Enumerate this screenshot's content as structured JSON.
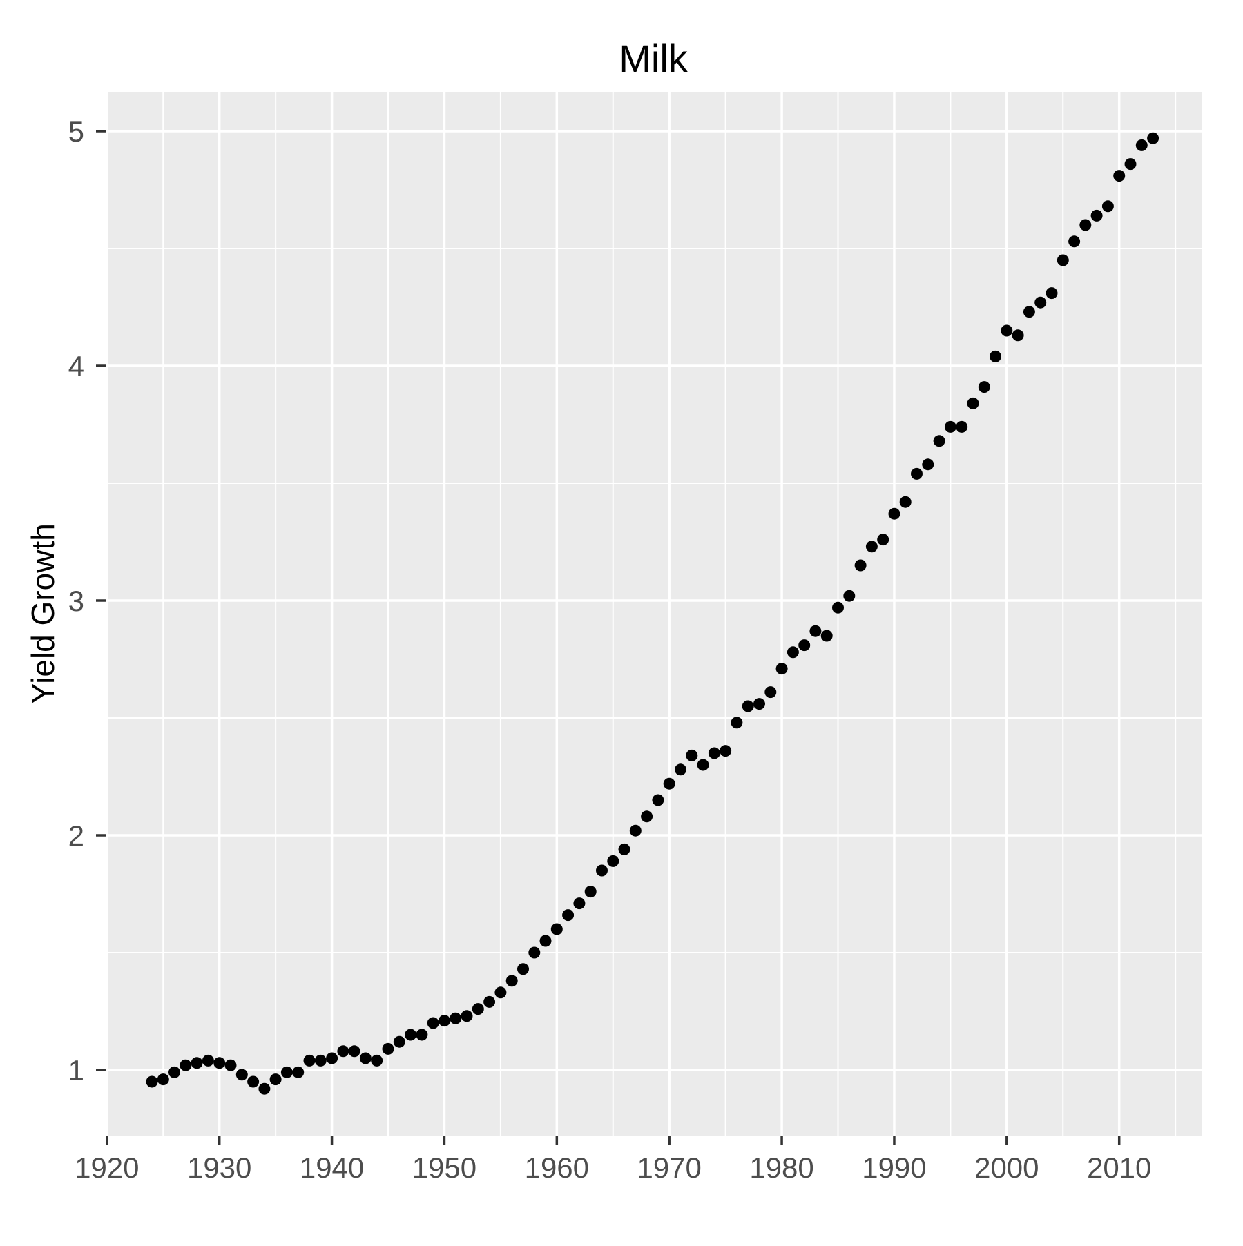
{
  "page": {
    "background_color": "#FFFFFF"
  },
  "chart_data": {
    "type": "scatter",
    "title": "Milk",
    "xlabel": "",
    "ylabel": "Yield Growth",
    "legend": "none",
    "grid": "major-and-minor",
    "panel_background": "#EBEBEB",
    "gridline_color": "#FFFFFF",
    "point_color": "#000000",
    "axis_text_color": "#4D4D4D",
    "tick_mark_color": "#333333",
    "x_ticks": [
      1920,
      1930,
      1940,
      1950,
      1960,
      1970,
      1980,
      1990,
      2000,
      2010
    ],
    "y_ticks": [
      1,
      2,
      3,
      4,
      5
    ],
    "xlim": [
      1919.9,
      2017.3
    ],
    "ylim": [
      0.72,
      5.17
    ],
    "x": [
      1924,
      1925,
      1926,
      1927,
      1928,
      1929,
      1930,
      1931,
      1932,
      1933,
      1934,
      1935,
      1936,
      1937,
      1938,
      1939,
      1940,
      1941,
      1942,
      1943,
      1944,
      1945,
      1946,
      1947,
      1948,
      1949,
      1950,
      1951,
      1952,
      1953,
      1954,
      1955,
      1956,
      1957,
      1958,
      1959,
      1960,
      1961,
      1962,
      1963,
      1964,
      1965,
      1966,
      1967,
      1968,
      1969,
      1970,
      1971,
      1972,
      1973,
      1974,
      1975,
      1976,
      1977,
      1978,
      1979,
      1980,
      1981,
      1982,
      1983,
      1984,
      1985,
      1986,
      1987,
      1988,
      1989,
      1990,
      1991,
      1992,
      1993,
      1994,
      1995,
      1996,
      1997,
      1998,
      1999,
      2000,
      2001,
      2002,
      2003,
      2004,
      2005,
      2006,
      2007,
      2008,
      2009,
      2010,
      2011,
      2012,
      2013
    ],
    "y": [
      0.95,
      0.96,
      0.99,
      1.02,
      1.03,
      1.04,
      1.03,
      1.02,
      0.98,
      0.95,
      0.92,
      0.96,
      0.99,
      0.99,
      1.04,
      1.04,
      1.05,
      1.08,
      1.08,
      1.05,
      1.04,
      1.09,
      1.12,
      1.15,
      1.15,
      1.2,
      1.21,
      1.22,
      1.23,
      1.26,
      1.29,
      1.33,
      1.38,
      1.43,
      1.5,
      1.55,
      1.6,
      1.66,
      1.71,
      1.76,
      1.85,
      1.89,
      1.94,
      2.02,
      2.08,
      2.15,
      2.22,
      2.28,
      2.34,
      2.3,
      2.35,
      2.36,
      2.48,
      2.55,
      2.56,
      2.61,
      2.71,
      2.78,
      2.81,
      2.87,
      2.85,
      2.97,
      3.02,
      3.15,
      3.23,
      3.26,
      3.37,
      3.42,
      3.54,
      3.58,
      3.68,
      3.74,
      3.74,
      3.84,
      3.91,
      4.04,
      4.15,
      4.13,
      4.23,
      4.27,
      4.31,
      4.45,
      4.53,
      4.6,
      4.64,
      4.68,
      4.81,
      4.86,
      4.94,
      4.97
    ]
  }
}
